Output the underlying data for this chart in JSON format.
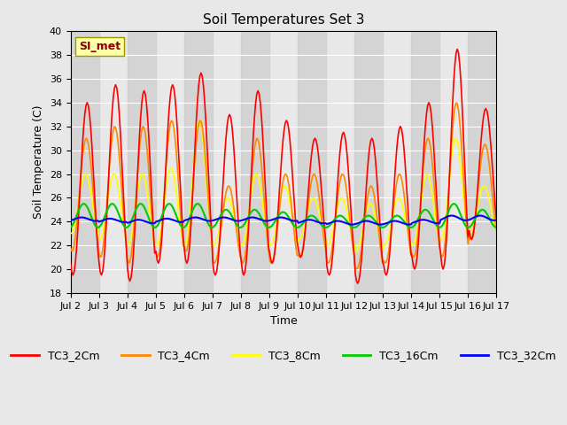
{
  "title": "Soil Temperatures Set 3",
  "xlabel": "Time",
  "ylabel": "Soil Temperature (C)",
  "ylim": [
    18,
    40
  ],
  "yticks": [
    18,
    20,
    22,
    24,
    26,
    28,
    30,
    32,
    34,
    36,
    38,
    40
  ],
  "xtick_labels": [
    "Jul 2",
    "Jul 3",
    "Jul 4",
    "Jul 5",
    "Jul 6",
    "Jul 7",
    "Jul 8",
    "Jul 9",
    "Jul 10",
    "Jul 11",
    "Jul 12",
    "Jul 13",
    "Jul 14",
    "Jul 15",
    "Jul 16",
    "Jul 17"
  ],
  "series_labels": [
    "TC3_2Cm",
    "TC3_4Cm",
    "TC3_8Cm",
    "TC3_16Cm",
    "TC3_32Cm"
  ],
  "series_colors": [
    "#ff0000",
    "#ff8800",
    "#ffff00",
    "#00cc00",
    "#0000ff"
  ],
  "series_linewidths": [
    1.2,
    1.2,
    1.2,
    1.5,
    1.5
  ],
  "annotation_text": "SI_met",
  "background_color": "#e8e8e8",
  "n_days": 15,
  "n_points_per_day": 24,
  "TC3_2Cm_peaks": [
    34.0,
    35.5,
    35.0,
    35.5,
    36.5,
    33.0,
    35.0,
    32.5,
    31.0,
    31.5,
    31.0,
    32.0,
    34.0,
    38.5,
    33.5
  ],
  "TC3_2Cm_troughs": [
    19.5,
    19.5,
    19.0,
    20.5,
    20.5,
    19.5,
    19.5,
    20.5,
    21.0,
    19.5,
    18.8,
    19.5,
    20.0,
    20.0,
    22.5
  ],
  "TC3_4Cm_peaks": [
    31.0,
    32.0,
    32.0,
    32.5,
    32.5,
    27.0,
    31.0,
    28.0,
    28.0,
    28.0,
    27.0,
    28.0,
    31.0,
    34.0,
    30.5
  ],
  "TC3_4Cm_troughs": [
    21.5,
    21.0,
    20.5,
    21.0,
    21.5,
    20.5,
    20.5,
    20.5,
    21.0,
    20.5,
    20.0,
    20.5,
    21.0,
    21.0,
    22.5
  ],
  "TC3_8Cm_peaks": [
    28.0,
    28.0,
    28.0,
    28.5,
    32.5,
    26.0,
    28.0,
    27.0,
    26.0,
    26.0,
    25.5,
    26.0,
    28.0,
    31.0,
    27.0
  ],
  "TC3_8Cm_troughs": [
    23.0,
    22.5,
    22.0,
    22.0,
    22.0,
    22.0,
    22.0,
    22.0,
    22.5,
    22.0,
    21.5,
    22.0,
    22.0,
    22.5,
    23.0
  ],
  "TC3_16Cm_peaks": [
    25.5,
    25.5,
    25.5,
    25.5,
    25.5,
    25.0,
    25.0,
    24.8,
    24.5,
    24.5,
    24.5,
    24.5,
    25.0,
    25.5,
    25.0
  ],
  "TC3_16Cm_troughs": [
    23.5,
    23.5,
    23.5,
    23.5,
    23.5,
    23.5,
    23.5,
    23.5,
    23.5,
    23.5,
    23.5,
    23.5,
    23.5,
    23.5,
    23.5
  ],
  "TC3_32Cm_base": [
    24.2,
    24.1,
    24.0,
    24.1,
    24.2,
    24.2,
    24.2,
    24.2,
    24.0,
    23.9,
    23.9,
    23.9,
    24.0,
    24.3,
    24.3
  ],
  "TC3_32Cm_amp": [
    0.15,
    0.15,
    0.15,
    0.15,
    0.15,
    0.15,
    0.15,
    0.15,
    0.15,
    0.15,
    0.15,
    0.15,
    0.15,
    0.2,
    0.2
  ]
}
